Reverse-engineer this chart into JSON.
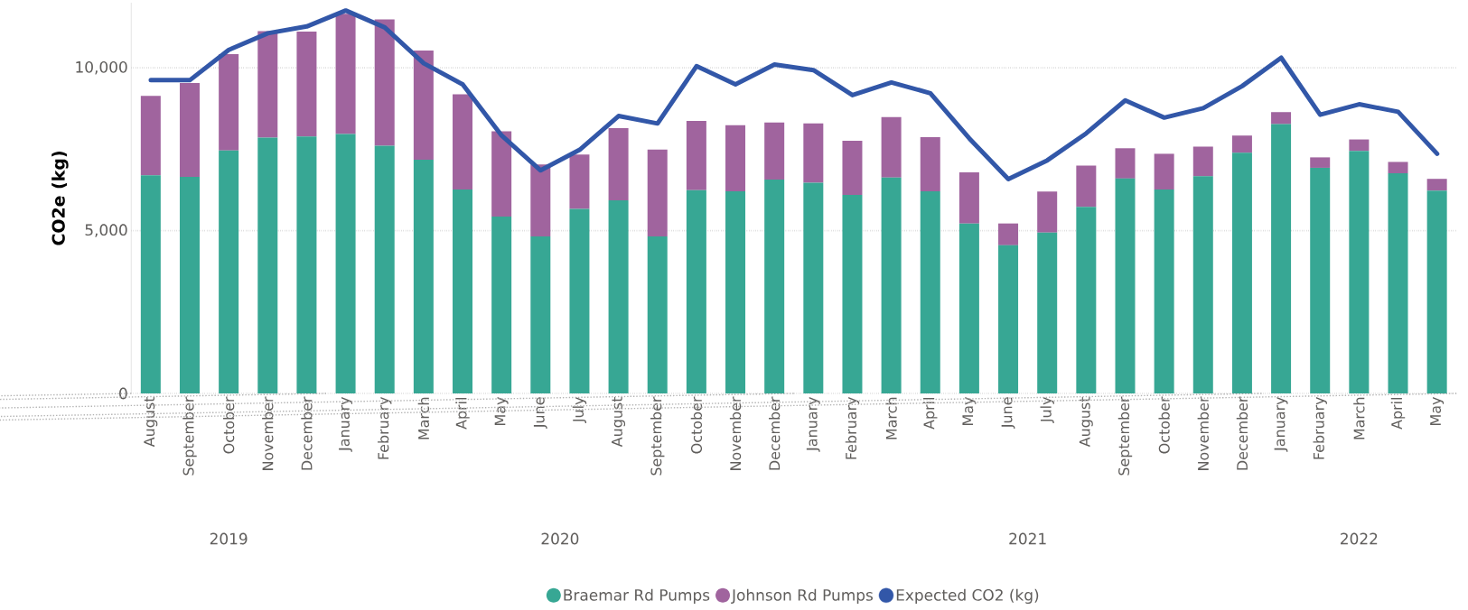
{
  "chart_data": {
    "type": "bar",
    "stacked": true,
    "ylabel": "CO2e (kg)",
    "x": [
      "2019-08",
      "2019-09",
      "2019-10",
      "2019-11",
      "2019-12",
      "2020-01",
      "2020-02",
      "2020-03",
      "2020-04",
      "2020-05",
      "2020-06",
      "2020-07",
      "2020-08",
      "2020-09",
      "2020-10",
      "2020-11",
      "2020-12",
      "2021-01",
      "2021-02",
      "2021-03",
      "2021-04",
      "2021-05",
      "2021-06",
      "2021-07",
      "2021-08",
      "2021-09",
      "2021-10",
      "2021-11",
      "2021-12",
      "2022-01",
      "2022-02",
      "2022-03",
      "2022-04",
      "2022-05"
    ],
    "xlim": [
      "2019-07-16",
      "2022-05-16"
    ],
    "xticks": [
      {
        "value": "2019-08",
        "label": "August"
      },
      {
        "value": "2019-09",
        "label": "September"
      },
      {
        "value": "2019-10",
        "label": "October"
      },
      {
        "value": "2019-11",
        "label": "November"
      },
      {
        "value": "2019-12",
        "label": "December"
      },
      {
        "value": "2020-01",
        "label": "January"
      },
      {
        "value": "2020-02",
        "label": "February"
      },
      {
        "value": "2020-03",
        "label": "March"
      },
      {
        "value": "2020-04",
        "label": "April"
      },
      {
        "value": "2020-05",
        "label": "May"
      },
      {
        "value": "2020-06",
        "label": "June"
      },
      {
        "value": "2020-07",
        "label": "July"
      },
      {
        "value": "2020-08",
        "label": "August"
      },
      {
        "value": "2020-09",
        "label": "September"
      },
      {
        "value": "2020-10",
        "label": "October"
      },
      {
        "value": "2020-11",
        "label": "November"
      },
      {
        "value": "2020-12",
        "label": "December"
      },
      {
        "value": "2021-01",
        "label": "January"
      },
      {
        "value": "2021-02",
        "label": "February"
      },
      {
        "value": "2021-03",
        "label": "March"
      },
      {
        "value": "2021-04",
        "label": "April"
      },
      {
        "value": "2021-05",
        "label": "May"
      },
      {
        "value": "2021-06",
        "label": "June"
      },
      {
        "value": "2021-07",
        "label": "July"
      },
      {
        "value": "2021-08",
        "label": "August"
      },
      {
        "value": "2021-09",
        "label": "September"
      },
      {
        "value": "2021-10",
        "label": "October"
      },
      {
        "value": "2021-11",
        "label": "November"
      },
      {
        "value": "2021-12",
        "label": "December"
      },
      {
        "value": "2022-01",
        "label": "January"
      },
      {
        "value": "2022-02",
        "label": "February"
      },
      {
        "value": "2022-03",
        "label": "March"
      },
      {
        "value": "2022-04",
        "label": "April"
      },
      {
        "value": "2022-05",
        "label": "May"
      }
    ],
    "series": [
      {
        "name": "Braemar Rd Pumps",
        "color": "#37a794",
        "values": [
          6700,
          6650,
          7460,
          7860,
          7890,
          7970,
          7610,
          7180,
          6260,
          5430,
          4820,
          5670,
          5930,
          4820,
          6240,
          6210,
          6570,
          6470,
          6100,
          6630,
          6210,
          5220,
          4550,
          4940,
          5730,
          6600,
          6260,
          6670,
          7390,
          8270,
          6930,
          7450,
          6760,
          6230
        ]
      },
      {
        "name": "Johnson Rd Pumps",
        "color": "#a0649e",
        "values": [
          2440,
          2880,
          2960,
          3270,
          3220,
          3690,
          3880,
          3350,
          2930,
          2620,
          2210,
          1670,
          2220,
          2670,
          2130,
          2030,
          1750,
          1820,
          1660,
          1860,
          1660,
          1570,
          670,
          1260,
          1270,
          930,
          1100,
          910,
          530,
          370,
          320,
          350,
          350,
          360
        ]
      },
      {
        "name": "Expected CO2 (kg)",
        "type": "line",
        "color": "#3257a8",
        "values": [
          9620,
          9620,
          10550,
          11060,
          11270,
          11760,
          11240,
          10140,
          9490,
          7920,
          6850,
          7480,
          8520,
          8290,
          10050,
          9490,
          10100,
          9930,
          9160,
          9550,
          9220,
          7830,
          6580,
          7160,
          7990,
          9000,
          8470,
          8760,
          9440,
          10310,
          8560,
          8880,
          8650,
          7360
        ]
      }
    ],
    "ylim": [
      0,
      12000
    ],
    "yticks": [
      {
        "value": 0,
        "label": "0"
      },
      {
        "value": 5000,
        "label": "5,000"
      },
      {
        "value": 10000,
        "label": "10,000"
      }
    ],
    "grid": "y",
    "legend": "bottom",
    "annotations": [
      "2019",
      "2020",
      "2021",
      "2022"
    ]
  }
}
